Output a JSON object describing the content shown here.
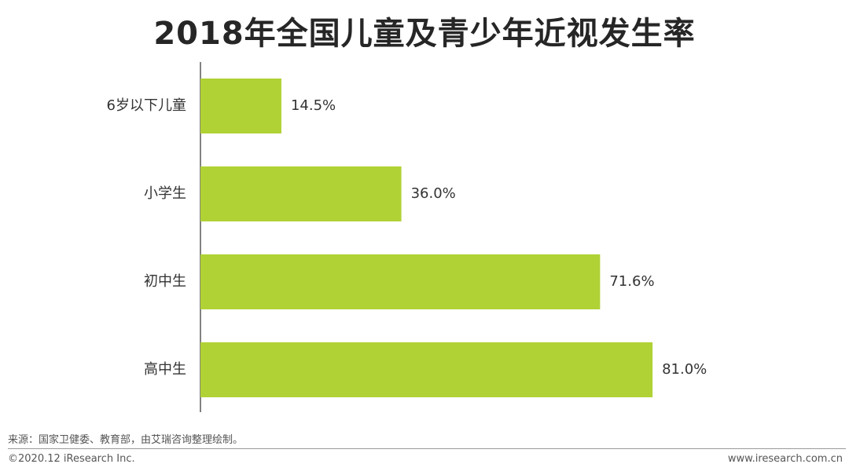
{
  "header": {
    "title": "2018年全国儿童及青少年近视发生率"
  },
  "chart_data": {
    "type": "bar",
    "orientation": "horizontal",
    "title": "2018年全国儿童及青少年近视发生率",
    "categories": [
      "6岁以下儿童",
      "小学生",
      "初中生",
      "高中生"
    ],
    "values": [
      14.5,
      36.0,
      71.6,
      81.0
    ],
    "value_labels": [
      "14.5%",
      "36.0%",
      "71.6%",
      "81.0%"
    ],
    "xlabel": "",
    "ylabel": "",
    "xlim": [
      0,
      100
    ],
    "grid": false,
    "legend": "none",
    "bar_color": "#b0d235"
  },
  "footer": {
    "source": "来源：国家卫健委、教育部，由艾瑞咨询整理绘制。",
    "copyright": "©2020.12 iResearch Inc.",
    "website": "www.iresearch.com.cn"
  }
}
